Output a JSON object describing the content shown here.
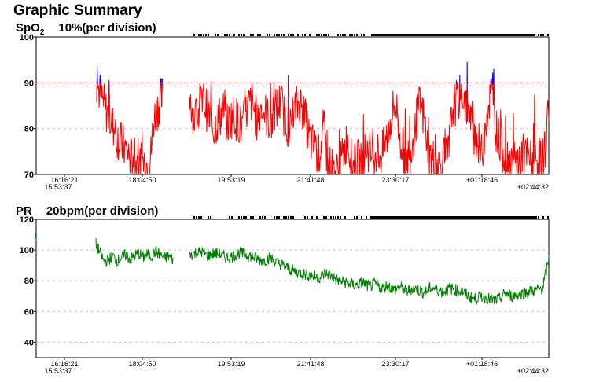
{
  "title": "Graphic Summary",
  "panels": [
    {
      "label": "SpO",
      "label_sub": "2",
      "division": "10%(per division)"
    },
    {
      "label": "PR",
      "label_sub": "",
      "division": "20bpm(per division)"
    }
  ],
  "colors": {
    "spo2_low": "#ff0000",
    "spo2_high": "#0000ff",
    "pr": "#008000",
    "threshold": "#ff0000",
    "grid": "#c0c0c0"
  },
  "chart_data": [
    {
      "type": "line",
      "title": "SpO2 10%(per division)",
      "x_start_label": "16:16:21",
      "x_origin_label": "15:53:37",
      "x_tick_labels": [
        "18:04:50",
        "19:53:19",
        "21:41:48",
        "23:30:17",
        "+01:18:46"
      ],
      "x_end_label": "+02:44:32",
      "y_tick_labels": [
        "100",
        "90",
        "80",
        "70"
      ],
      "ylim": [
        70,
        100
      ],
      "threshold": 90,
      "grid": true,
      "series": [
        {
          "color_rule": "red below 90, blue above 90",
          "segments": [
            {
              "values": [
                90,
                88,
                86,
                84,
                83,
                81,
                80,
                78,
                77,
                76,
                75,
                74,
                73,
                73,
                72,
                72,
                73,
                72,
                74,
                82,
                84,
                86,
                87
              ]
            },
            {
              "values": [
                88,
                82,
                84,
                86,
                83,
                80,
                82,
                84,
                81,
                83,
                82,
                80,
                84,
                86,
                82,
                85,
                83,
                81,
                84,
                86,
                82,
                80,
                84,
                86,
                83,
                78,
                76,
                74,
                80,
                72,
                71,
                70,
                74,
                78,
                71,
                73,
                72,
                76,
                74,
                75,
                74,
                77,
                82,
                86,
                78,
                74,
                74,
                80,
                85,
                82,
                74,
                73,
                72,
                73,
                74,
                85,
                86,
                88,
                84,
                80,
                78,
                74,
                83,
                88,
                80,
                76,
                74,
                73,
                72,
                73,
                74,
                73,
                73,
                73,
                73,
                85
              ]
            }
          ]
        }
      ]
    },
    {
      "type": "line",
      "title": "PR 20bpm(per division)",
      "x_start_label": "16:16:21",
      "x_origin_label": "15:53:37",
      "x_tick_labels": [
        "18:04:50",
        "19:53:19",
        "21:41:48",
        "23:30:17",
        "+01:18:46"
      ],
      "x_end_label": "+02:44:32",
      "y_tick_labels": [
        "120",
        "100",
        "80",
        "60",
        "40"
      ],
      "ylim": [
        30,
        120
      ],
      "grid": true,
      "series": [
        {
          "color": "pr",
          "segments": [
            {
              "values": [
                110,
                104
              ]
            },
            {
              "values": [
                104,
                98,
                92,
                94,
                96,
                93,
                95,
                97,
                94,
                96,
                98,
                95,
                97,
                96,
                99,
                97,
                95,
                96,
                94
              ]
            },
            {
              "values": [
                97,
                98,
                99,
                96,
                98,
                97,
                95,
                96,
                98,
                97,
                96,
                94,
                93,
                95,
                92,
                90,
                88,
                86,
                85,
                84,
                83,
                82,
                85,
                83,
                80,
                79,
                78,
                77,
                79,
                76,
                78,
                75,
                77,
                74,
                76,
                73,
                75,
                74,
                72,
                76,
                74,
                73,
                75,
                74,
                73,
                70,
                68,
                70,
                69,
                67,
                68,
                72,
                70,
                71,
                72,
                73,
                74,
                75,
                94
              ]
            }
          ]
        }
      ]
    }
  ]
}
